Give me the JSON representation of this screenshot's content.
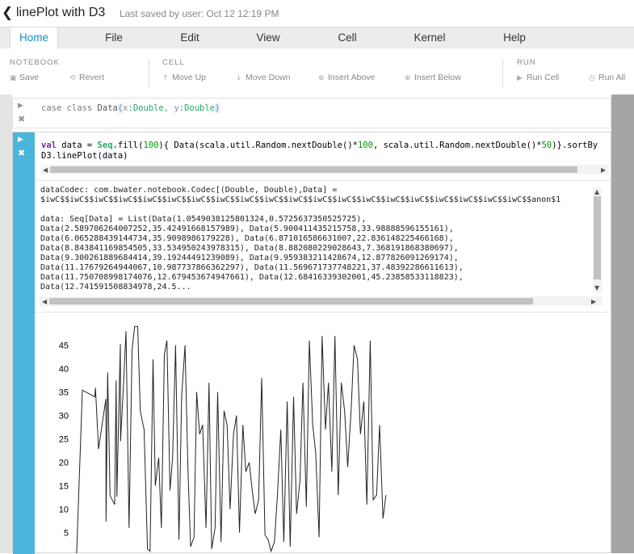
{
  "header": {
    "back_icon": "chevron-left-icon",
    "title": "linePlot with D3",
    "saved": "Last saved by user: Oct 12 12:19 PM"
  },
  "menu": {
    "items": [
      {
        "label": "Home"
      },
      {
        "label": "File"
      },
      {
        "label": "Edit"
      },
      {
        "label": "View"
      },
      {
        "label": "Cell"
      },
      {
        "label": "Kernel"
      },
      {
        "label": "Help"
      }
    ],
    "active": "Home",
    "accent": "#1a8bc9"
  },
  "toolbar": {
    "notebook_label": "NOTEBOOK",
    "cell_label": "CELL",
    "run_label": "RUN",
    "save": "Save",
    "revert": "Revert",
    "move_up": "Move Up",
    "move_down": "Move Down",
    "insert_above": "Insert Above",
    "insert_below": "Insert Below",
    "run_cell": "Run Cell",
    "run_all": "Run All"
  },
  "cells": {
    "cell1": {
      "code_kw1": "case class ",
      "code_name": "Data",
      "code_paren_open": "(",
      "code_arg1": "x",
      "code_type1": ":Double",
      "code_sep": ", ",
      "code_arg2": "y",
      "code_type2": ":Double",
      "code_paren_close": ")"
    },
    "cell2": {
      "line1_kw": "val",
      "line1_a": " data = ",
      "line1_seq": "Seq",
      "line1_b": ".fill(",
      "line1_n1": "100",
      "line1_c": "){ Data(scala.util.Random.nextDouble()*",
      "line1_n2": "100",
      "line1_d": ", scala.util.Random.nextDouble()*",
      "line1_n3": "50",
      "line1_e": ")}.sortBy",
      "line2": "D3.linePlot(data)",
      "accent": "#4ab6dc"
    },
    "output": {
      "lines": [
        "dataCodec: com.bwater.notebook.Codec[(Double, Double),Data] =",
        "$iwC$$iwC$$iwC$$iwC$$iwC$$iwC$$iwC$$iwC$$iwC$$iwC$$iwC$$iwC$$iwC$$iwC$$iwC$$iwC$$iwC$$iwC$$iwC$$iwC$$anon$1",
        "",
        "data: Seq[Data] = List(Data(1.0549038125801324,0.5725637350525725),",
        "Data(2.589706264007252,35.42491668157989), Data(5.900411435215758,33.98888596155161),",
        "Data(6.065288439144734,35.9098986179228), Data(6.871016586631007,22.836148225466168),",
        "Data(8.843841169854505,33.534950243978315), Data(8.882080229028643,7.368191868380697),",
        "Data(9.300261889684414,39.19244491239089), Data(9.959383211428674,12.877826091269174),",
        "Data(11.17679264944067,10.987737866362297), Data(11.569671737748221,37.48392286611613),",
        "Data(11.750708998174076,12.679453674947661), Data(12.68416339302001,45.23858533118823),",
        "Data(12.741591508834978,24.5..."
      ]
    }
  },
  "chart_data": {
    "type": "line",
    "title": "",
    "xlabel": "",
    "ylabel": "",
    "ylim": [
      0,
      50
    ],
    "y_ticks": [
      5,
      10,
      15,
      20,
      25,
      30,
      35,
      40,
      45
    ],
    "grid": false,
    "legend": "none",
    "line_color": "#222222",
    "x": [
      1.05,
      2.59,
      5.9,
      6.07,
      6.87,
      8.84,
      8.88,
      9.3,
      9.96,
      11.18,
      11.57,
      11.75,
      12.68,
      12.74,
      13.6,
      14.2,
      15.0,
      15.8,
      16.5,
      17.3,
      18.0,
      19.0,
      19.9,
      20.6,
      21.4,
      22.0,
      22.9,
      23.6,
      24.4,
      25.1,
      25.9,
      26.6,
      27.4,
      28.3,
      29.0,
      29.9,
      30.7,
      31.4,
      32.3,
      33.0,
      33.8,
      34.6,
      35.5,
      36.3,
      37.0,
      37.9,
      38.6,
      39.5,
      40.3,
      41.1,
      41.9,
      42.8,
      43.6,
      44.4,
      45.3,
      46.1,
      47.0,
      47.8,
      48.6,
      49.5,
      50.3,
      51.2,
      52.0,
      52.8,
      53.7,
      54.5,
      55.4,
      56.2,
      57.1,
      57.9,
      58.8,
      59.6,
      60.5,
      61.3,
      62.2,
      63.0,
      63.9,
      64.7,
      65.6,
      66.4,
      67.3,
      68.1,
      69.0,
      69.8,
      70.7,
      71.5,
      72.4,
      73.2,
      74.1,
      74.9,
      75.8,
      76.6,
      77.5,
      78.3,
      79.2,
      80.0,
      80.9,
      81.7,
      82.6,
      83.4
    ],
    "y": [
      0.57,
      35.42,
      33.99,
      35.91,
      22.84,
      33.53,
      7.37,
      39.19,
      12.88,
      10.99,
      37.48,
      12.68,
      45.24,
      24.5,
      38.0,
      48.0,
      6.0,
      44.0,
      49.0,
      49.0,
      31.0,
      27.0,
      1.5,
      1.0,
      42.0,
      15.0,
      21.0,
      6.0,
      43.0,
      46.0,
      14.0,
      21.0,
      45.0,
      3.5,
      34.0,
      45.0,
      18.0,
      2.0,
      4.0,
      35.0,
      26.0,
      28.0,
      6.0,
      37.0,
      1.5,
      6.0,
      35.0,
      3.0,
      31.0,
      28.0,
      10.0,
      26.0,
      30.0,
      5.0,
      28.0,
      18.0,
      20.0,
      14.0,
      9.0,
      12.0,
      38.0,
      4.5,
      3.5,
      1.0,
      3.0,
      13.0,
      27.0,
      3.0,
      33.0,
      2.0,
      34.0,
      9.0,
      16.0,
      37.0,
      10.5,
      46.0,
      28.0,
      22.0,
      4.0,
      47.0,
      27.0,
      37.0,
      18.0,
      47.0,
      13.0,
      37.0,
      31.0,
      19.0,
      31.0,
      45.0,
      42.0,
      26.0,
      33.0,
      11.0,
      46.0,
      12.0,
      13.0,
      28.0,
      8.0,
      13.0
    ]
  }
}
